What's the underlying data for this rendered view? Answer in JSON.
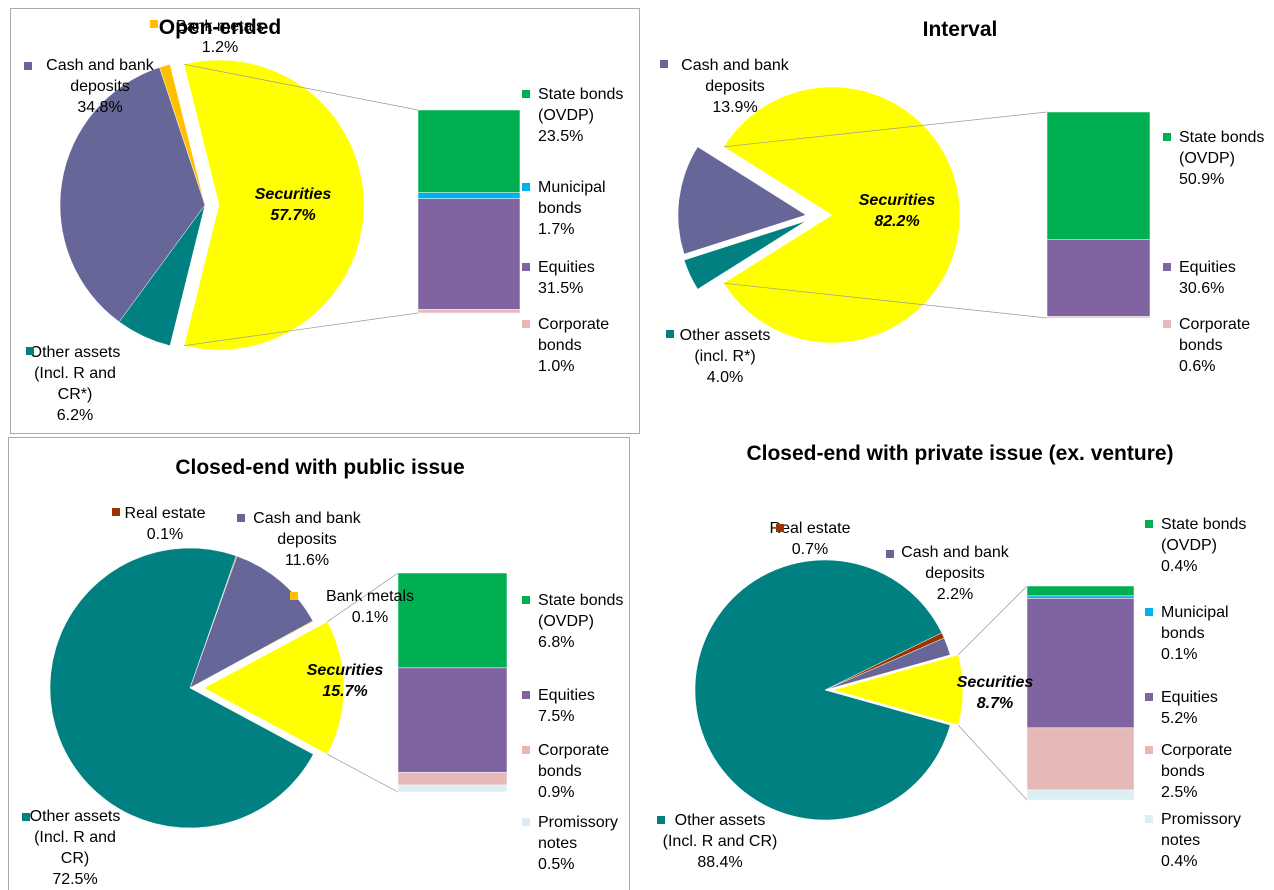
{
  "chart_data": [
    {
      "type": "pie",
      "title": "Open-ended",
      "categories": [
        "Securities",
        "Other assets (Incl. R and CR*)",
        "Cash and bank deposits",
        "Bank metals"
      ],
      "values": [
        57.7,
        6.2,
        34.8,
        1.2
      ],
      "value_labels": [
        "57.7%",
        "6.2%",
        "34.8%",
        "1.2%"
      ],
      "colors": [
        "#ffff00",
        "#008080",
        "#666699",
        "#ffc000"
      ],
      "bar": {
        "categories": [
          "State bonds (OVDP)",
          "Municipal bonds",
          "Equities",
          "Corporate bonds"
        ],
        "values": [
          23.5,
          1.7,
          31.5,
          1.0
        ],
        "value_labels": [
          "23.5%",
          "1.7%",
          "31.5%",
          "1.0%"
        ],
        "colors": [
          "#00b050",
          "#00b0f0",
          "#8064a2",
          "#e6b9b8"
        ]
      }
    },
    {
      "type": "pie",
      "title": "Interval",
      "categories": [
        "Securities",
        "Other assets (incl. R*)",
        "Cash and bank deposits"
      ],
      "values": [
        82.2,
        4.0,
        13.9
      ],
      "value_labels": [
        "82.2%",
        "4.0%",
        "13.9%"
      ],
      "colors": [
        "#ffff00",
        "#008080",
        "#666699"
      ],
      "bar": {
        "categories": [
          "State bonds (OVDP)",
          "Equities",
          "Corporate bonds"
        ],
        "values": [
          50.9,
          30.6,
          0.6
        ],
        "value_labels": [
          "50.9%",
          "30.6%",
          "0.6%"
        ],
        "colors": [
          "#00b050",
          "#8064a2",
          "#e6b9b8"
        ]
      }
    },
    {
      "type": "pie",
      "title": "Closed-end with public issue",
      "categories": [
        "Securities",
        "Other assets (Incl. R and CR)",
        "Real estate",
        "Cash and bank deposits",
        "Bank metals"
      ],
      "values": [
        15.7,
        72.5,
        0.1,
        11.6,
        0.1
      ],
      "value_labels": [
        "15.7%",
        "72.5%",
        "0.1%",
        "11.6%",
        "0.1%"
      ],
      "colors": [
        "#ffff00",
        "#008080",
        "#993300",
        "#666699",
        "#ffc000"
      ],
      "bar": {
        "categories": [
          "State bonds (OVDP)",
          "Equities",
          "Corporate bonds",
          "Promissory notes"
        ],
        "values": [
          6.8,
          7.5,
          0.9,
          0.5
        ],
        "value_labels": [
          "6.8%",
          "7.5%",
          "0.9%",
          "0.5%"
        ],
        "colors": [
          "#00b050",
          "#8064a2",
          "#e6b9b8",
          "#dbeef4"
        ]
      }
    },
    {
      "type": "pie",
      "title": "Closed-end with private issue  (ex. venture)",
      "categories": [
        "Securities",
        "Other assets (Incl. R and CR)",
        "Real estate",
        "Cash and bank deposits"
      ],
      "values": [
        8.7,
        88.4,
        0.7,
        2.2
      ],
      "value_labels": [
        "8.7%",
        "88.4%",
        "0.7%",
        "2.2%"
      ],
      "colors": [
        "#ffff00",
        "#008080",
        "#993300",
        "#666699"
      ],
      "bar": {
        "categories": [
          "State bonds (OVDP)",
          "Municipal bonds",
          "Equities",
          "Corporate bonds",
          "Promissory notes"
        ],
        "values": [
          0.4,
          0.1,
          5.2,
          2.5,
          0.4
        ],
        "value_labels": [
          "0.4%",
          "0.1%",
          "5.2%",
          "2.5%",
          "0.4%"
        ],
        "colors": [
          "#00b050",
          "#00b0f0",
          "#8064a2",
          "#e6b9b8",
          "#dbeef4"
        ]
      }
    }
  ]
}
